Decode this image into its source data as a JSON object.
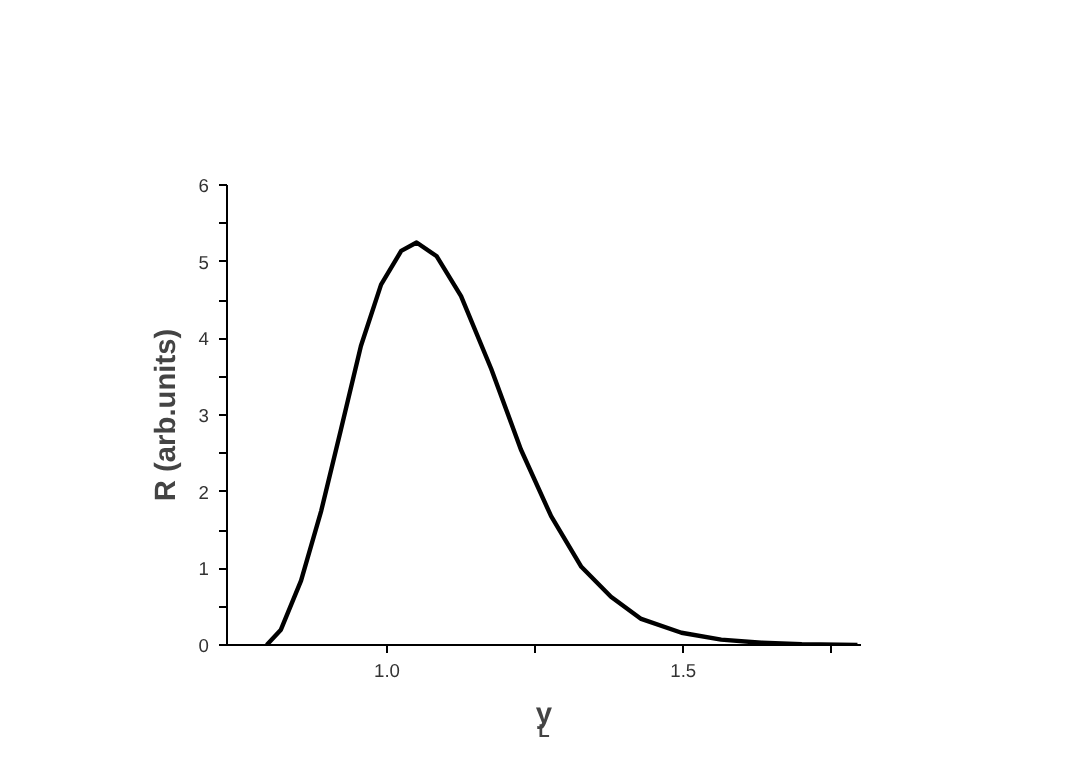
{
  "chart_data": {
    "type": "line",
    "xlabel": "y$_{L}$",
    "ylabel": "R (arb.units)",
    "x": [
      0.797,
      0.821,
      0.855,
      0.889,
      0.922,
      0.956,
      0.99,
      1.024,
      1.05,
      1.084,
      1.125,
      1.176,
      1.226,
      1.277,
      1.328,
      1.378,
      1.429,
      1.497,
      1.564,
      1.632,
      1.7,
      1.794
    ],
    "series": [
      {
        "color": "#000000",
        "values": [
          0,
          0.2,
          0.84,
          1.75,
          2.8,
          3.9,
          4.7,
          5.14,
          5.25,
          5.07,
          4.55,
          3.6,
          2.55,
          1.68,
          1.02,
          0.63,
          0.34,
          0.16,
          0.07,
          0.03,
          0.01,
          0
        ]
      }
    ],
    "xlim": [
      0.73,
      1.8
    ],
    "ylim": [
      0,
      6
    ],
    "xticks": [
      {
        "value": 1.0,
        "label": "1.0"
      },
      {
        "value": 1.25,
        "label": null
      },
      {
        "value": 1.5,
        "label": "1.5"
      },
      {
        "value": 1.75,
        "label": null
      }
    ],
    "yticks": [
      0,
      {
        "value": 0.5,
        "label": null
      },
      1,
      {
        "value": 1.5,
        "label": null
      },
      2,
      {
        "value": 2.5,
        "label": null
      },
      3,
      {
        "value": 3.5,
        "label": null
      },
      4,
      {
        "value": 4.5,
        "label": null
      },
      5,
      {
        "value": 5.5,
        "label": null
      },
      6
    ],
    "grid": false,
    "legend": false,
    "marker": "none",
    "line_style": "solid"
  }
}
